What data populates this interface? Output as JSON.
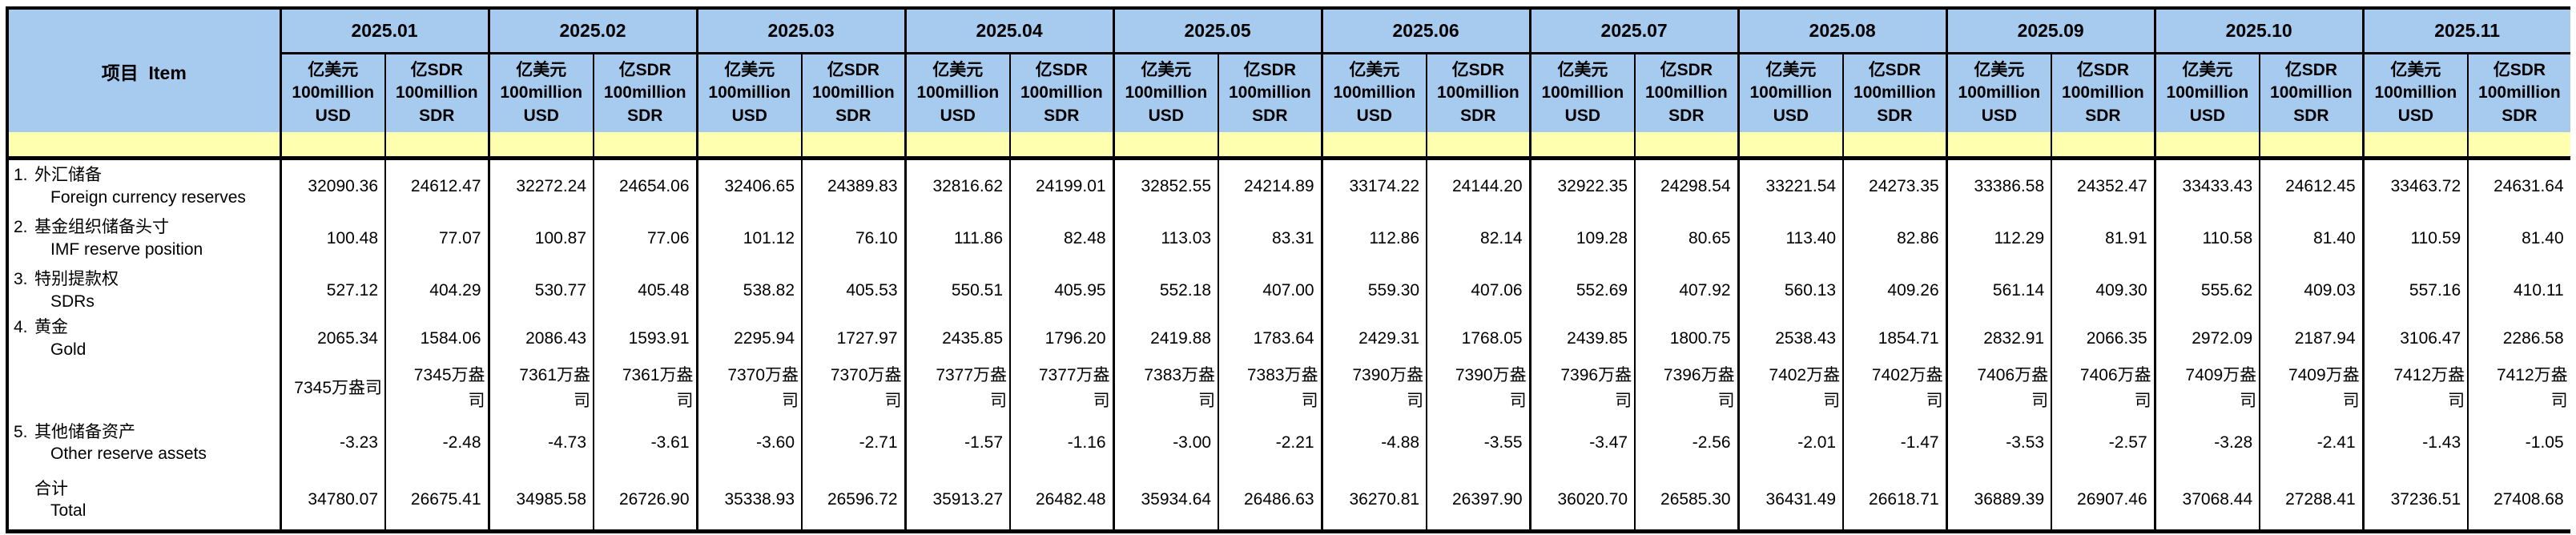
{
  "header": {
    "item": "项目  Item",
    "usd_unit": "亿美元\n100million\nUSD",
    "sdr_unit": "亿SDR\n100million\nSDR"
  },
  "months": [
    "2025.01",
    "2025.02",
    "2025.03",
    "2025.04",
    "2025.05",
    "2025.06",
    "2025.07",
    "2025.08",
    "2025.09",
    "2025.10",
    "2025.11"
  ],
  "rows": [
    {
      "no": "1.",
      "zh": "外汇储备",
      "en": "Foreign currency reserves",
      "type": "data",
      "values": [
        [
          "32090.36",
          "24612.47"
        ],
        [
          "32272.24",
          "24654.06"
        ],
        [
          "32406.65",
          "24389.83"
        ],
        [
          "32816.62",
          "24199.01"
        ],
        [
          "32852.55",
          "24214.89"
        ],
        [
          "33174.22",
          "24144.20"
        ],
        [
          "32922.35",
          "24298.54"
        ],
        [
          "33221.54",
          "24273.35"
        ],
        [
          "33386.58",
          "24352.47"
        ],
        [
          "33433.43",
          "24612.45"
        ],
        [
          "33463.72",
          "24631.64"
        ]
      ]
    },
    {
      "no": "2.",
      "zh": "基金组织储备头寸",
      "en": "IMF reserve position",
      "type": "data",
      "values": [
        [
          "100.48",
          "77.07"
        ],
        [
          "100.87",
          "77.06"
        ],
        [
          "101.12",
          "76.10"
        ],
        [
          "111.86",
          "82.48"
        ],
        [
          "113.03",
          "83.31"
        ],
        [
          "112.86",
          "82.14"
        ],
        [
          "109.28",
          "80.65"
        ],
        [
          "113.40",
          "82.86"
        ],
        [
          "112.29",
          "81.91"
        ],
        [
          "110.58",
          "81.40"
        ],
        [
          "110.59",
          "81.40"
        ]
      ]
    },
    {
      "no": "3.",
      "zh": "特别提款权",
      "en": "SDRs",
      "type": "data",
      "values": [
        [
          "527.12",
          "404.29"
        ],
        [
          "530.77",
          "405.48"
        ],
        [
          "538.82",
          "405.53"
        ],
        [
          "550.51",
          "405.95"
        ],
        [
          "552.18",
          "407.00"
        ],
        [
          "559.30",
          "407.06"
        ],
        [
          "552.69",
          "407.92"
        ],
        [
          "560.13",
          "409.26"
        ],
        [
          "561.14",
          "409.30"
        ],
        [
          "555.62",
          "409.03"
        ],
        [
          "557.16",
          "410.11"
        ]
      ]
    },
    {
      "no": "4.",
      "zh": "黄金",
      "en": "Gold",
      "type": "data",
      "values": [
        [
          "2065.34",
          "1584.06"
        ],
        [
          "2086.43",
          "1593.91"
        ],
        [
          "2295.94",
          "1727.97"
        ],
        [
          "2435.85",
          "1796.20"
        ],
        [
          "2419.88",
          "1783.64"
        ],
        [
          "2429.31",
          "1768.05"
        ],
        [
          "2439.85",
          "1800.75"
        ],
        [
          "2538.43",
          "1854.71"
        ],
        [
          "2832.91",
          "2066.35"
        ],
        [
          "2972.09",
          "2187.94"
        ],
        [
          "3106.47",
          "2286.58"
        ]
      ]
    },
    {
      "no": "",
      "zh": "",
      "en": "",
      "type": "oz",
      "values": [
        [
          "7345万盎司",
          "7345万盎司"
        ],
        [
          "7361万盎司",
          "7361万盎司"
        ],
        [
          "7370万盎司",
          "7370万盎司"
        ],
        [
          "7377万盎司",
          "7377万盎司"
        ],
        [
          "7383万盎司",
          "7383万盎司"
        ],
        [
          "7390万盎司",
          "7390万盎司"
        ],
        [
          "7396万盎司",
          "7396万盎司"
        ],
        [
          "7402万盎司",
          "7402万盎司"
        ],
        [
          "7406万盎司",
          "7406万盎司"
        ],
        [
          "7409万盎司",
          "7409万盎司"
        ],
        [
          "7412万盎司",
          "7412万盎司"
        ]
      ]
    },
    {
      "no": "5.",
      "zh": "其他储备资产",
      "en": "Other reserve assets",
      "type": "data",
      "values": [
        [
          "-3.23",
          "-2.48"
        ],
        [
          "-4.73",
          "-3.61"
        ],
        [
          "-3.60",
          "-2.71"
        ],
        [
          "-1.57",
          "-1.16"
        ],
        [
          "-3.00",
          "-2.21"
        ],
        [
          "-4.88",
          "-3.55"
        ],
        [
          "-3.47",
          "-2.56"
        ],
        [
          "-2.01",
          "-1.47"
        ],
        [
          "-3.53",
          "-2.57"
        ],
        [
          "-3.28",
          "-2.41"
        ],
        [
          "-1.43",
          "-1.05"
        ]
      ]
    },
    {
      "no": "",
      "zh": "合计",
      "en": "Total",
      "type": "total",
      "values": [
        [
          "34780.07",
          "26675.41"
        ],
        [
          "34985.58",
          "26726.90"
        ],
        [
          "35338.93",
          "26596.72"
        ],
        [
          "35913.27",
          "26482.48"
        ],
        [
          "35934.64",
          "26486.63"
        ],
        [
          "36270.81",
          "26397.90"
        ],
        [
          "36020.70",
          "26585.30"
        ],
        [
          "36431.49",
          "26618.71"
        ],
        [
          "36889.39",
          "26907.46"
        ],
        [
          "37068.44",
          "27288.41"
        ],
        [
          "37236.51",
          "27408.68"
        ]
      ]
    }
  ],
  "colors": {
    "header_blue": "#A7CAEF",
    "stripe_yellow": "#FFFFB0",
    "border": "#000000"
  }
}
